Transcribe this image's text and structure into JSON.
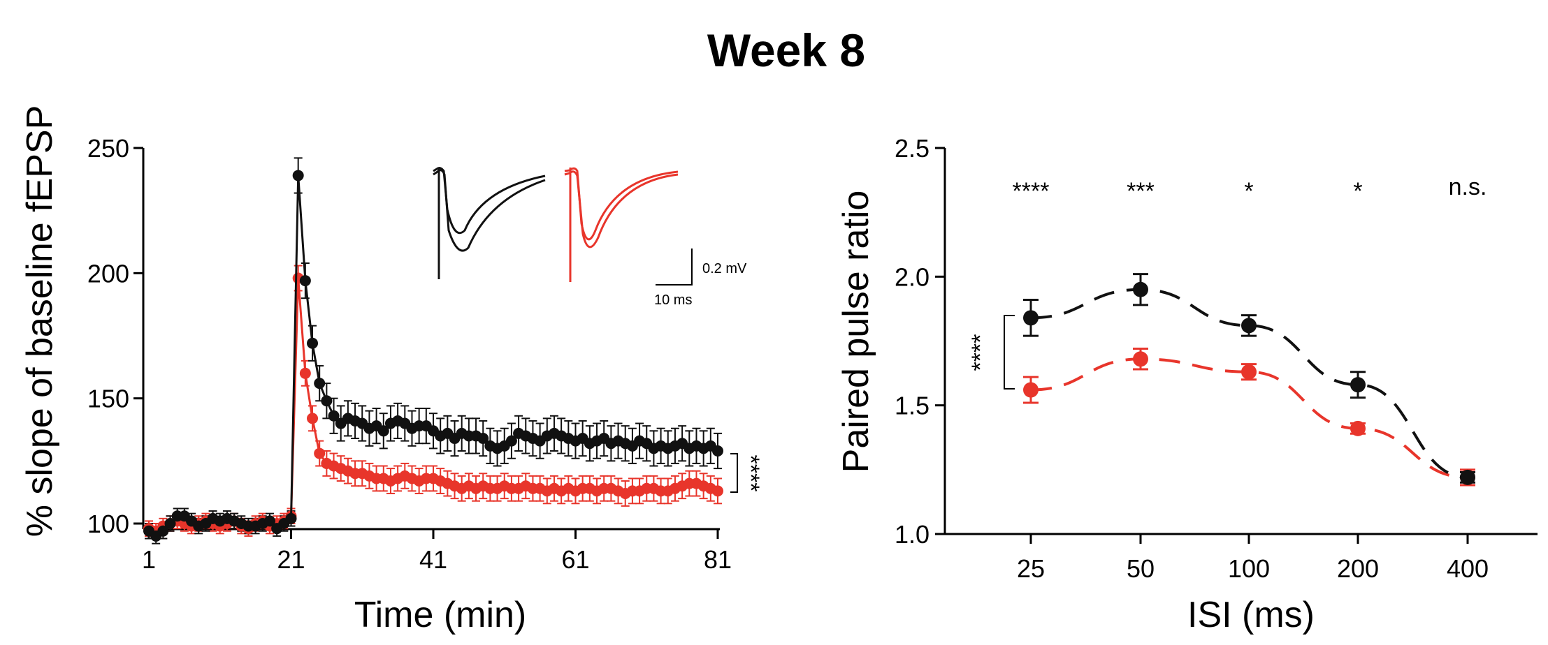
{
  "title": "Week 8",
  "colors": {
    "black": "#111111",
    "red": "#e8352b"
  },
  "left": {
    "chart_data": {
      "type": "line",
      "xlabel": "Time (min)",
      "ylabel": "% slope of baseline fEPSP",
      "xlim": [
        0,
        82
      ],
      "ylim": [
        100,
        250
      ],
      "xticks": [
        1,
        21,
        41,
        61,
        81
      ],
      "yticks": [
        100,
        150,
        200,
        250
      ],
      "series": [
        {
          "name": "black",
          "x": [
            1,
            2,
            3,
            4,
            5,
            6,
            7,
            8,
            9,
            10,
            11,
            12,
            13,
            14,
            15,
            16,
            17,
            18,
            19,
            20,
            21,
            22,
            23,
            24,
            25,
            26,
            27,
            28,
            29,
            30,
            31,
            32,
            33,
            34,
            35,
            36,
            37,
            38,
            39,
            40,
            41,
            42,
            43,
            44,
            45,
            46,
            47,
            48,
            49,
            50,
            51,
            52,
            53,
            54,
            55,
            56,
            57,
            58,
            59,
            60,
            61,
            62,
            63,
            64,
            65,
            66,
            67,
            68,
            69,
            70,
            71,
            72,
            73,
            74,
            75,
            76,
            77,
            78,
            79,
            80,
            81
          ],
          "values": [
            97,
            95,
            97,
            100,
            103,
            103,
            101,
            99,
            100,
            102,
            101,
            102,
            101,
            100,
            99,
            99,
            100,
            101,
            98,
            100,
            102,
            239,
            197,
            172,
            156,
            149,
            143,
            140,
            142,
            141,
            140,
            138,
            139,
            137,
            140,
            141,
            140,
            138,
            139,
            139,
            137,
            135,
            136,
            134,
            136,
            135,
            135,
            134,
            131,
            130,
            131,
            133,
            136,
            135,
            134,
            133,
            135,
            136,
            135,
            134,
            133,
            134,
            132,
            133,
            134,
            132,
            133,
            132,
            131,
            133,
            132,
            130,
            131,
            130,
            131,
            132,
            130,
            131,
            130,
            131,
            129
          ]
        },
        {
          "name": "red",
          "x": [
            1,
            2,
            3,
            4,
            5,
            6,
            7,
            8,
            9,
            10,
            11,
            12,
            13,
            14,
            15,
            16,
            17,
            18,
            19,
            20,
            21,
            22,
            23,
            24,
            25,
            26,
            27,
            28,
            29,
            30,
            31,
            32,
            33,
            34,
            35,
            36,
            37,
            38,
            39,
            40,
            41,
            42,
            43,
            44,
            45,
            46,
            47,
            48,
            49,
            50,
            51,
            52,
            53,
            54,
            55,
            56,
            57,
            58,
            59,
            60,
            61,
            62,
            63,
            64,
            65,
            66,
            67,
            68,
            69,
            70,
            71,
            72,
            73,
            74,
            75,
            76,
            77,
            78,
            79,
            80,
            81
          ],
          "values": [
            98,
            97,
            99,
            100,
            101,
            100,
            99,
            100,
            101,
            100,
            99,
            100,
            101,
            99,
            98,
            100,
            101,
            99,
            100,
            101,
            103,
            198,
            160,
            142,
            128,
            124,
            123,
            122,
            121,
            120,
            120,
            119,
            118,
            118,
            117,
            118,
            119,
            118,
            117,
            118,
            118,
            117,
            116,
            115,
            114,
            115,
            114,
            115,
            114,
            114,
            115,
            114,
            114,
            115,
            114,
            114,
            113,
            114,
            113,
            114,
            113,
            114,
            114,
            113,
            114,
            114,
            113,
            112,
            113,
            113,
            114,
            114,
            113,
            113,
            114,
            115,
            116,
            116,
            115,
            114,
            113
          ]
        }
      ],
      "significance": "****"
    },
    "scale_bar": {
      "voltage": "0.2 mV",
      "time": "10 ms"
    }
  },
  "right": {
    "chart_data": {
      "type": "line",
      "xlabel": "ISI (ms)",
      "ylabel": "Paired pulse ratio",
      "categories": [
        "25",
        "50",
        "100",
        "200",
        "400"
      ],
      "ylim": [
        1.0,
        2.5
      ],
      "yticks": [
        "1.0",
        "1.5",
        "2.0",
        "2.5"
      ],
      "series": [
        {
          "name": "black",
          "values": [
            1.84,
            1.95,
            1.81,
            1.58,
            1.22
          ],
          "errors": [
            0.07,
            0.06,
            0.04,
            0.05,
            0.02
          ]
        },
        {
          "name": "red",
          "values": [
            1.56,
            1.68,
            1.63,
            1.41,
            1.22
          ],
          "errors": [
            0.05,
            0.04,
            0.03,
            0.02,
            0.03
          ]
        }
      ],
      "significance_labels": [
        "****",
        "***",
        "*",
        "*",
        "n.s."
      ],
      "bracket_label": "****"
    }
  }
}
